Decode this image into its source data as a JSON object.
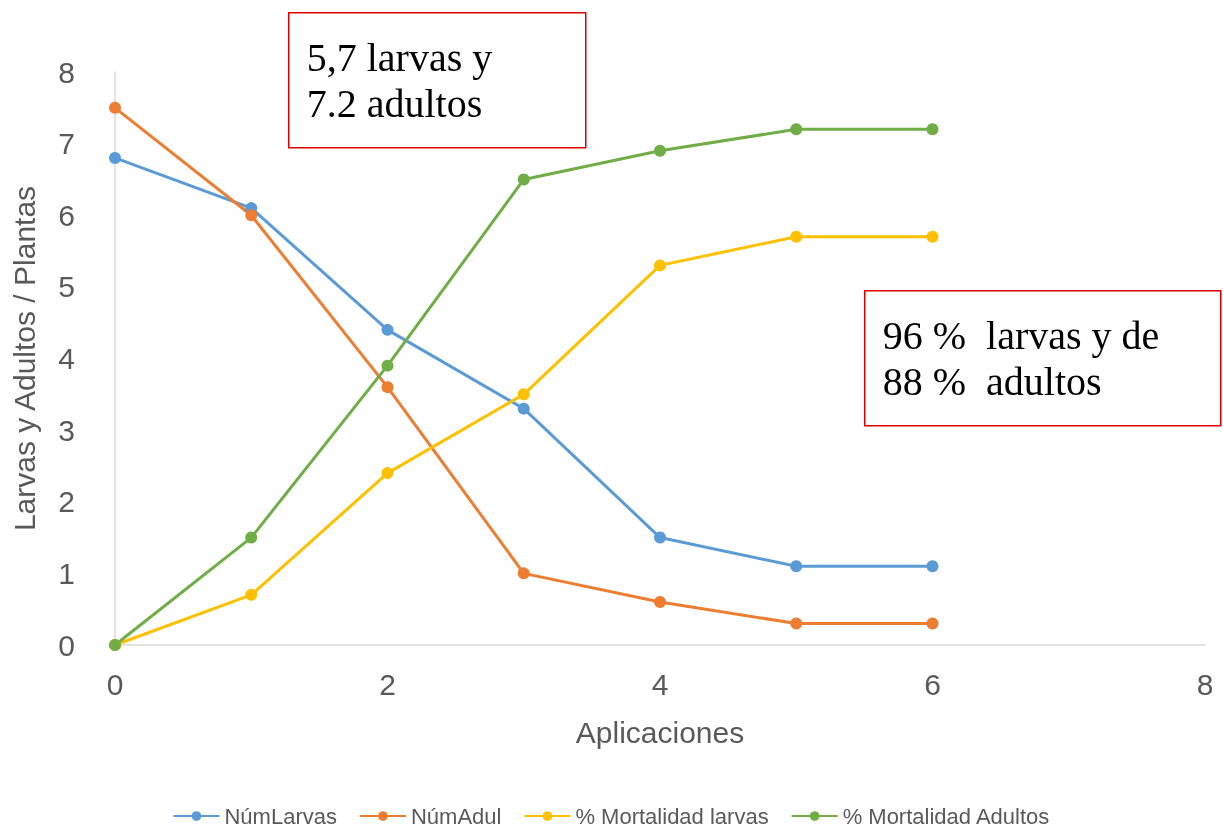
{
  "chart_data": {
    "type": "line",
    "xlabel": "Aplicaciones",
    "ylabel": "Larvas y Adultos / Plantas",
    "x": [
      0,
      1,
      2,
      3,
      4,
      5,
      6
    ],
    "series": [
      {
        "name": "NúmLarvas",
        "color": "#5b9bd5",
        "values": [
          6.8,
          6.1,
          4.4,
          3.3,
          1.5,
          1.1,
          1.1
        ]
      },
      {
        "name": "NúmAdul",
        "color": "#ed7d31",
        "values": [
          7.5,
          6.0,
          3.6,
          1.0,
          0.6,
          0.3,
          0.3
        ]
      },
      {
        "name": "% Mortalidad larvas",
        "color": "#ffc000",
        "values": [
          0,
          0.7,
          2.4,
          3.5,
          5.3,
          5.7,
          5.7
        ]
      },
      {
        "name": "% Mortalidad Adultos",
        "color": "#70ad47",
        "values": [
          0,
          1.5,
          3.9,
          6.5,
          6.9,
          7.2,
          7.2
        ]
      }
    ],
    "xlim": [
      0,
      8
    ],
    "xticks": [
      0,
      2,
      4,
      6,
      8
    ],
    "ylim": [
      0,
      8
    ],
    "yticks": [
      0,
      1,
      2,
      3,
      4,
      5,
      6,
      7,
      8
    ],
    "grid": false,
    "legend": "bottom",
    "marker": "circle",
    "line_style": "solid",
    "annotations": [
      "5,7 larvas y\n7.2 adultos",
      "96 %  larvas y de\n88 %  adultos"
    ]
  }
}
